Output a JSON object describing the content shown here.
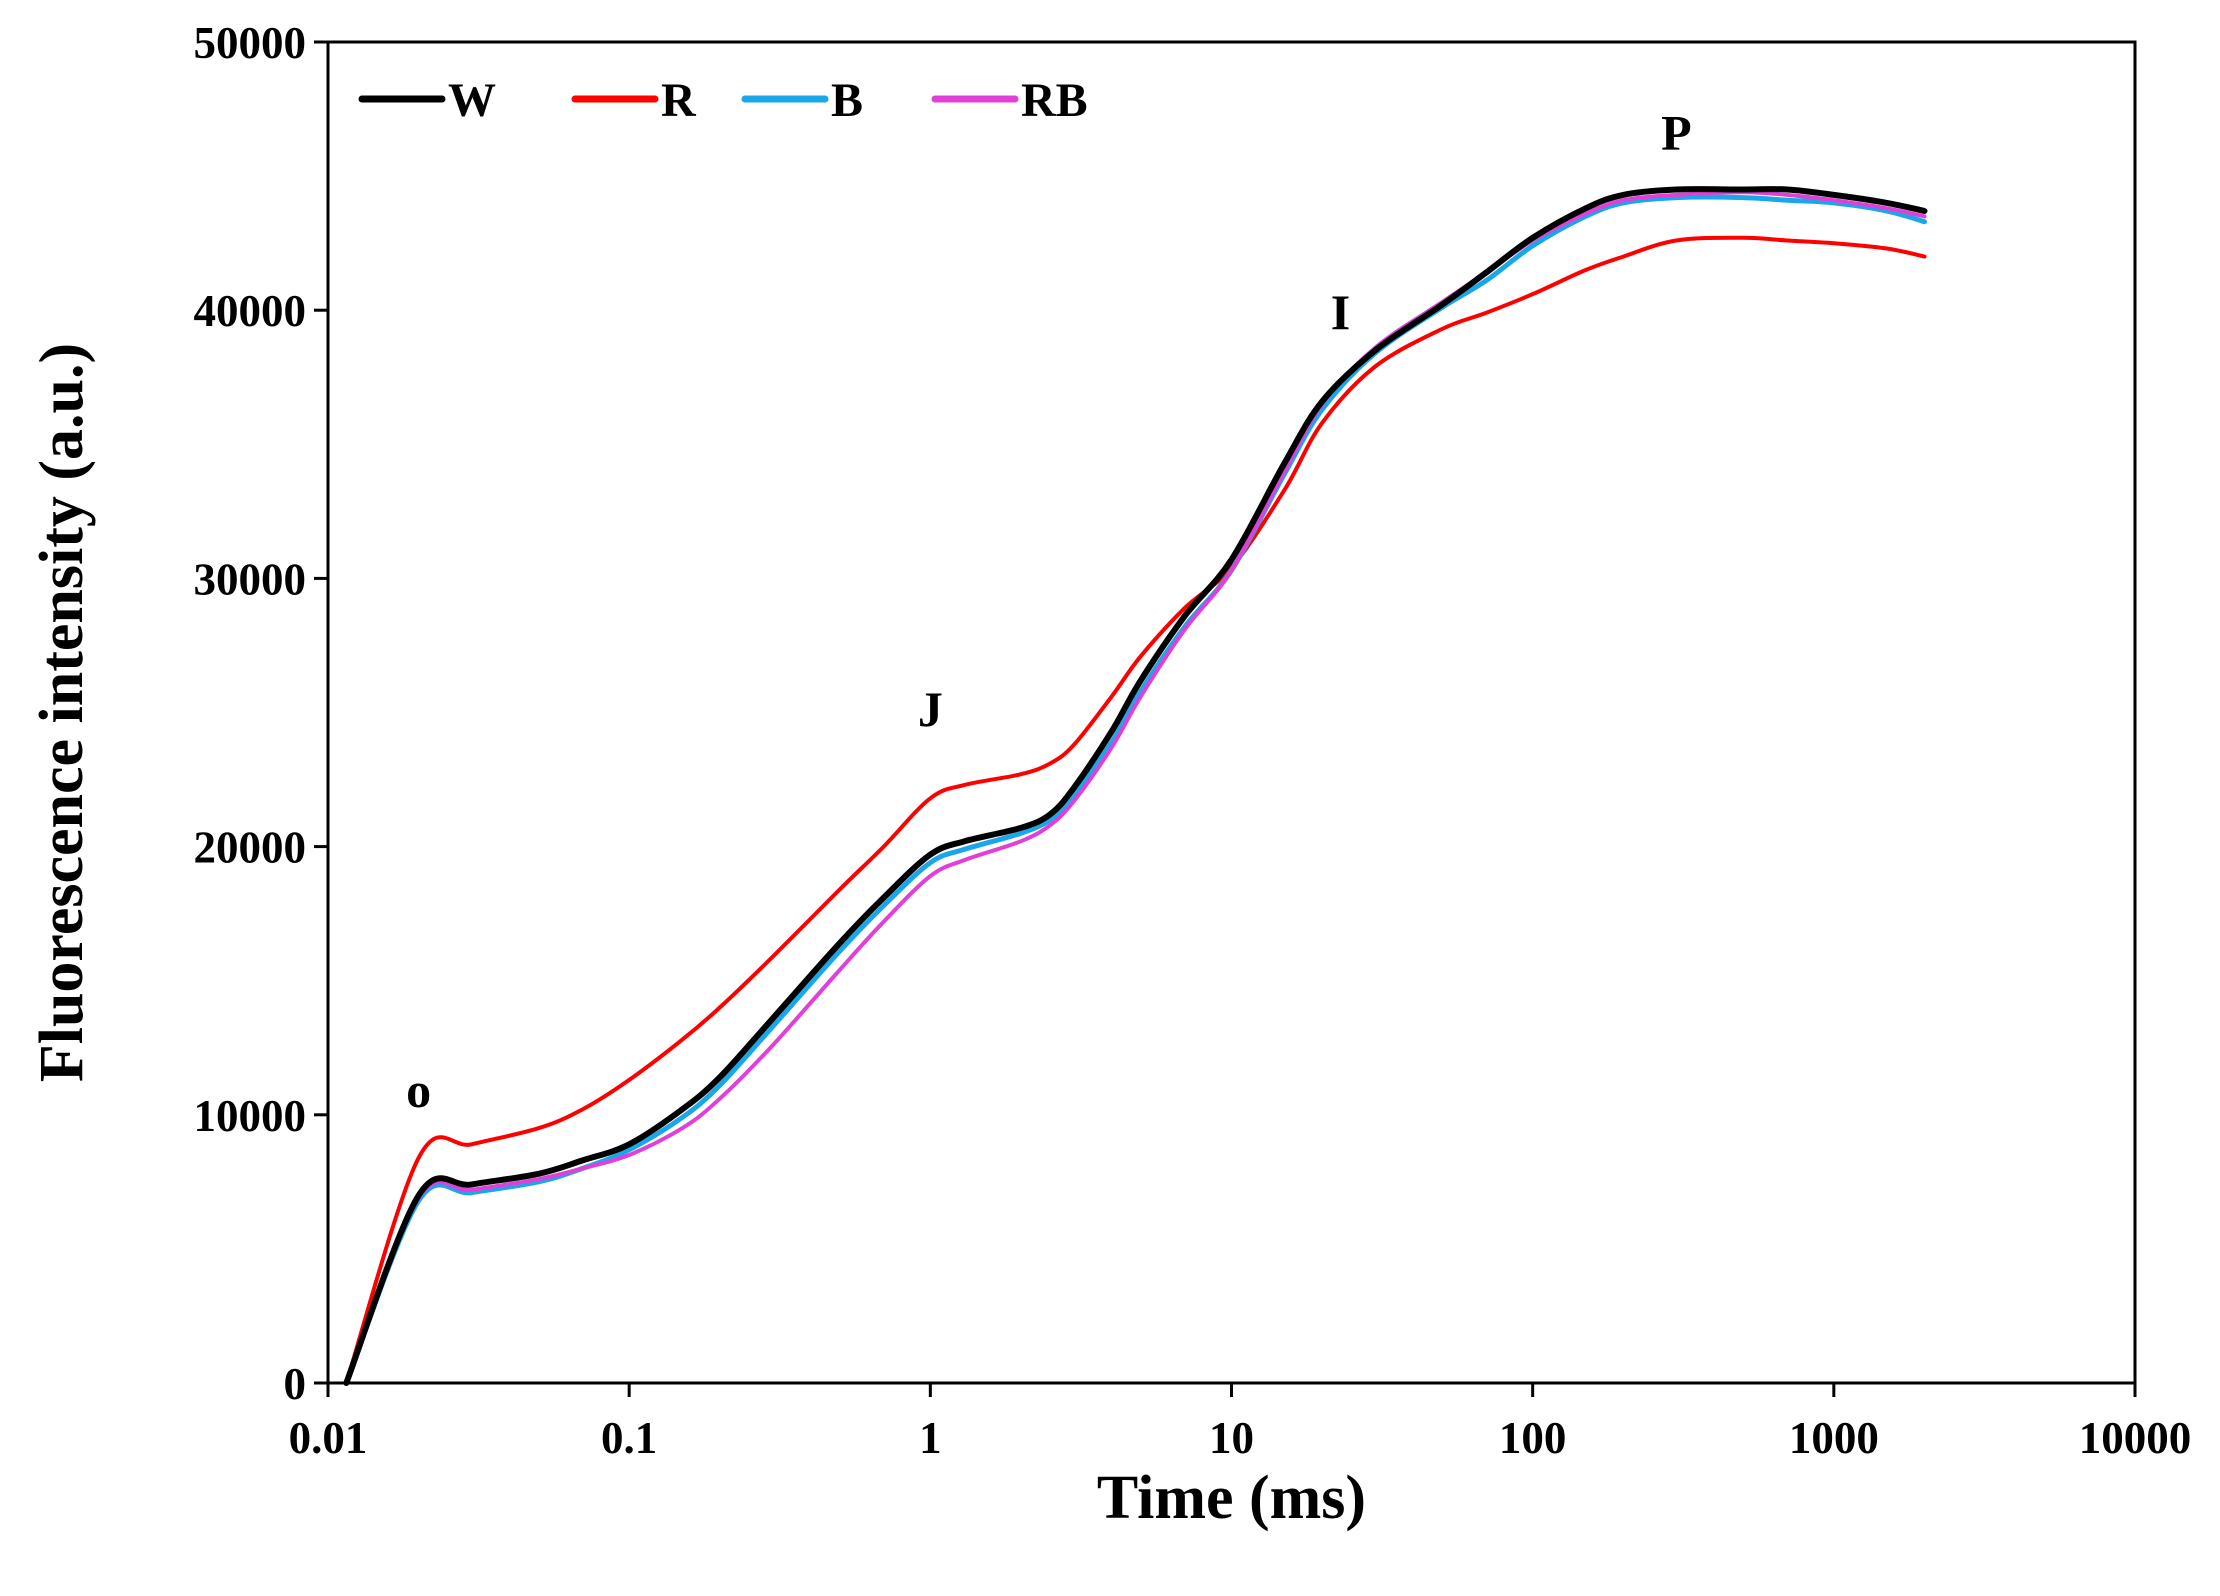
{
  "chart_data": {
    "type": "line",
    "title": "",
    "xlabel": "Time (ms)",
    "ylabel": "Fluorescence intensity (a.u.)",
    "x_scale": "log",
    "xlim": [
      0.01,
      10000
    ],
    "ylim": [
      0,
      50000
    ],
    "x_ticks": [
      0.01,
      0.1,
      1,
      10,
      100,
      1000,
      10000
    ],
    "x_tick_labels": [
      "0.01",
      "0.1",
      "1",
      "10",
      "100",
      "1000",
      "10000"
    ],
    "y_ticks": [
      0,
      10000,
      20000,
      30000,
      40000,
      50000
    ],
    "y_tick_labels": [
      "0",
      "10000",
      "20000",
      "30000",
      "40000",
      "50000"
    ],
    "grid": false,
    "legend_position": "top-left",
    "annotations": [
      {
        "text": "o",
        "x": 0.02,
        "y": 10300
      },
      {
        "text": "J",
        "x": 1.0,
        "y": 24500
      },
      {
        "text": "I",
        "x": 23,
        "y": 39300
      },
      {
        "text": "P",
        "x": 300,
        "y": 46000
      }
    ],
    "series": [
      {
        "name": "W",
        "color": "#000000",
        "x": [
          0.0115,
          0.02,
          0.03,
          0.05,
          0.07,
          0.1,
          0.15,
          0.2,
          0.3,
          0.5,
          0.7,
          1.0,
          1.3,
          2.0,
          2.5,
          3.0,
          4.0,
          5.0,
          7.0,
          10,
          15,
          20,
          30,
          50,
          70,
          100,
          150,
          200,
          300,
          500,
          700,
          1000,
          1500,
          2000
        ],
        "y": [
          0,
          7000,
          7400,
          7800,
          8300,
          8900,
          10200,
          11400,
          13600,
          16400,
          18100,
          19700,
          20200,
          20700,
          21200,
          22200,
          24300,
          26200,
          28600,
          30700,
          34300,
          36600,
          38500,
          40200,
          41400,
          42700,
          43800,
          44300,
          44500,
          44500,
          44500,
          44300,
          44000,
          43700
        ]
      },
      {
        "name": "R",
        "color": "#ff0000",
        "x": [
          0.0115,
          0.02,
          0.03,
          0.05,
          0.07,
          0.1,
          0.15,
          0.2,
          0.3,
          0.5,
          0.7,
          1.0,
          1.3,
          2.0,
          2.5,
          3.0,
          4.0,
          5.0,
          7.0,
          10,
          15,
          20,
          30,
          50,
          70,
          100,
          150,
          200,
          300,
          500,
          700,
          1000,
          1500,
          2000
        ],
        "y": [
          0,
          8400,
          8900,
          9500,
          10200,
          11300,
          12800,
          14000,
          15900,
          18400,
          20000,
          21800,
          22300,
          22700,
          23100,
          23800,
          25600,
          27100,
          28900,
          30400,
          33300,
          35800,
          37900,
          39300,
          39900,
          40600,
          41500,
          42000,
          42600,
          42700,
          42600,
          42500,
          42300,
          42000
        ]
      },
      {
        "name": "B",
        "color": "#1aa7e8",
        "x": [
          0.0115,
          0.02,
          0.03,
          0.05,
          0.07,
          0.1,
          0.15,
          0.2,
          0.3,
          0.5,
          0.7,
          1.0,
          1.3,
          2.0,
          2.5,
          3.0,
          4.0,
          5.0,
          7.0,
          10,
          15,
          20,
          30,
          50,
          70,
          100,
          150,
          200,
          300,
          500,
          700,
          1000,
          1500,
          2000
        ],
        "y": [
          0,
          6800,
          7100,
          7500,
          8000,
          8700,
          9900,
          11100,
          13300,
          16100,
          17800,
          19400,
          19900,
          20500,
          21000,
          21900,
          23900,
          25800,
          28200,
          30300,
          33900,
          36300,
          38400,
          40100,
          41100,
          42400,
          43500,
          44000,
          44200,
          44200,
          44100,
          44000,
          43700,
          43300
        ]
      },
      {
        "name": "RB",
        "color": "#e040d8",
        "x": [
          0.0115,
          0.02,
          0.03,
          0.05,
          0.07,
          0.1,
          0.15,
          0.2,
          0.3,
          0.5,
          0.7,
          1.0,
          1.3,
          2.0,
          2.5,
          3.0,
          4.0,
          5.0,
          7.0,
          10,
          15,
          20,
          30,
          50,
          70,
          100,
          150,
          200,
          300,
          500,
          700,
          1000,
          1500,
          2000
        ],
        "y": [
          0,
          6900,
          7200,
          7600,
          8000,
          8500,
          9500,
          10600,
          12600,
          15400,
          17200,
          18900,
          19500,
          20200,
          20800,
          21700,
          23700,
          25600,
          28100,
          30300,
          34000,
          36500,
          38600,
          40300,
          41400,
          42600,
          43600,
          44100,
          44300,
          44400,
          44300,
          44100,
          43800,
          43500
        ]
      }
    ]
  }
}
